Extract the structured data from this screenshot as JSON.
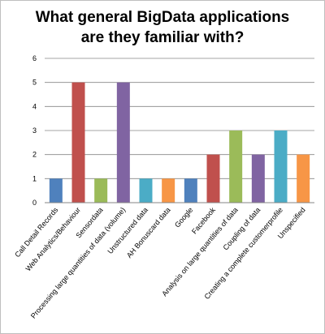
{
  "chart_data": {
    "type": "bar",
    "title": [
      "What general BigData applications",
      "are they familiar with?"
    ],
    "categories": [
      "Call Detail Records",
      "Web Analytics/Behaviour",
      "Sensordata",
      "Processing large quantities of data (volume)",
      "Unstructured data",
      "AH Bonuscard data",
      "Google",
      "Facebook",
      "Analysis on large quantities of data",
      "Coupling of data",
      "Creating a complete customerprofile",
      "Unspecified"
    ],
    "values": [
      1,
      5,
      1,
      5,
      1,
      1,
      1,
      2,
      3,
      2,
      3,
      2
    ],
    "colors": [
      "#4f81bd",
      "#c0504d",
      "#9bbb59",
      "#8064a2",
      "#4bacc6",
      "#f79646",
      "#4f81bd",
      "#c0504d",
      "#9bbb59",
      "#8064a2",
      "#4bacc6",
      "#f79646"
    ],
    "ylim": [
      0,
      6
    ],
    "yticks": [
      0,
      1,
      2,
      3,
      4,
      5,
      6
    ],
    "grid": true,
    "legend": "none"
  }
}
